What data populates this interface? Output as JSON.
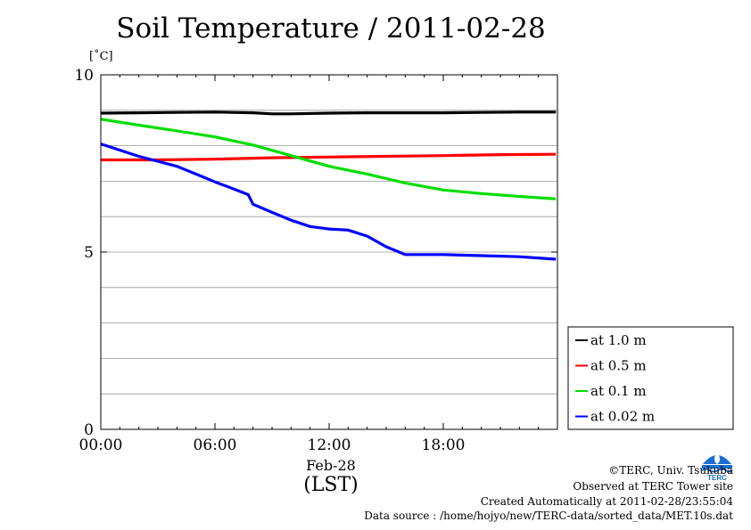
{
  "title": "Soil Temperature / 2011-02-28",
  "y_unit": "[˚C]",
  "x_date_label": "Feb-28",
  "x_tz_label": "(LST)",
  "footer": {
    "copyright": "©TERC, Univ. Tsukuba",
    "observed": "Observed at TERC Tower site",
    "created": "Created Automatically at 2011-02-28/23:55:04",
    "source": "Data source : /home/hojyo/new/TERC-data/sorted_data/MET.10s.dat"
  },
  "logo_text": "TERC",
  "chart_data": {
    "type": "line",
    "title": "Soil Temperature / 2011-02-28",
    "xlabel": "Feb-28 (LST)",
    "ylabel": "[˚C]",
    "xlim": [
      "00:00",
      "23:55"
    ],
    "ylim": [
      0,
      10
    ],
    "x_ticks": [
      "00:00",
      "06:00",
      "12:00",
      "18:00"
    ],
    "y_ticks": [
      "0",
      "5",
      "10"
    ],
    "grid": true,
    "legend_position": "right",
    "series": [
      {
        "name": "at 1.0 m",
        "color": "#000000",
        "points": [
          [
            "00:00",
            8.92
          ],
          [
            "02:00",
            8.93
          ],
          [
            "04:00",
            8.94
          ],
          [
            "06:00",
            8.95
          ],
          [
            "08:00",
            8.93
          ],
          [
            "09:00",
            8.9
          ],
          [
            "10:00",
            8.9
          ],
          [
            "12:00",
            8.92
          ],
          [
            "14:00",
            8.93
          ],
          [
            "16:00",
            8.93
          ],
          [
            "18:00",
            8.93
          ],
          [
            "20:00",
            8.94
          ],
          [
            "22:00",
            8.95
          ],
          [
            "23:55",
            8.95
          ]
        ]
      },
      {
        "name": "at 0.5 m",
        "color": "#ff0000",
        "points": [
          [
            "00:00",
            7.6
          ],
          [
            "03:00",
            7.6
          ],
          [
            "06:00",
            7.62
          ],
          [
            "09:00",
            7.66
          ],
          [
            "12:00",
            7.68
          ],
          [
            "15:00",
            7.7
          ],
          [
            "18:00",
            7.72
          ],
          [
            "21:00",
            7.75
          ],
          [
            "23:55",
            7.76
          ]
        ]
      },
      {
        "name": "at 0.1 m",
        "color": "#00dd00",
        "points": [
          [
            "00:00",
            8.75
          ],
          [
            "02:00",
            8.58
          ],
          [
            "04:00",
            8.42
          ],
          [
            "06:00",
            8.25
          ],
          [
            "08:00",
            8.02
          ],
          [
            "10:00",
            7.72
          ],
          [
            "12:00",
            7.42
          ],
          [
            "14:00",
            7.2
          ],
          [
            "16:00",
            6.95
          ],
          [
            "18:00",
            6.75
          ],
          [
            "20:00",
            6.65
          ],
          [
            "22:00",
            6.57
          ],
          [
            "23:55",
            6.5
          ]
        ]
      },
      {
        "name": "at 0.02 m",
        "color": "#0000ff",
        "points": [
          [
            "00:00",
            8.05
          ],
          [
            "02:00",
            7.7
          ],
          [
            "04:00",
            7.42
          ],
          [
            "05:00",
            7.2
          ],
          [
            "06:00",
            6.98
          ],
          [
            "07:00",
            6.78
          ],
          [
            "07:45",
            6.62
          ],
          [
            "08:00",
            6.35
          ],
          [
            "09:00",
            6.12
          ],
          [
            "10:00",
            5.9
          ],
          [
            "11:00",
            5.72
          ],
          [
            "12:00",
            5.65
          ],
          [
            "13:00",
            5.62
          ],
          [
            "14:00",
            5.45
          ],
          [
            "15:00",
            5.15
          ],
          [
            "16:00",
            4.93
          ],
          [
            "18:00",
            4.93
          ],
          [
            "20:00",
            4.9
          ],
          [
            "22:00",
            4.87
          ],
          [
            "23:55",
            4.8
          ]
        ]
      }
    ]
  }
}
